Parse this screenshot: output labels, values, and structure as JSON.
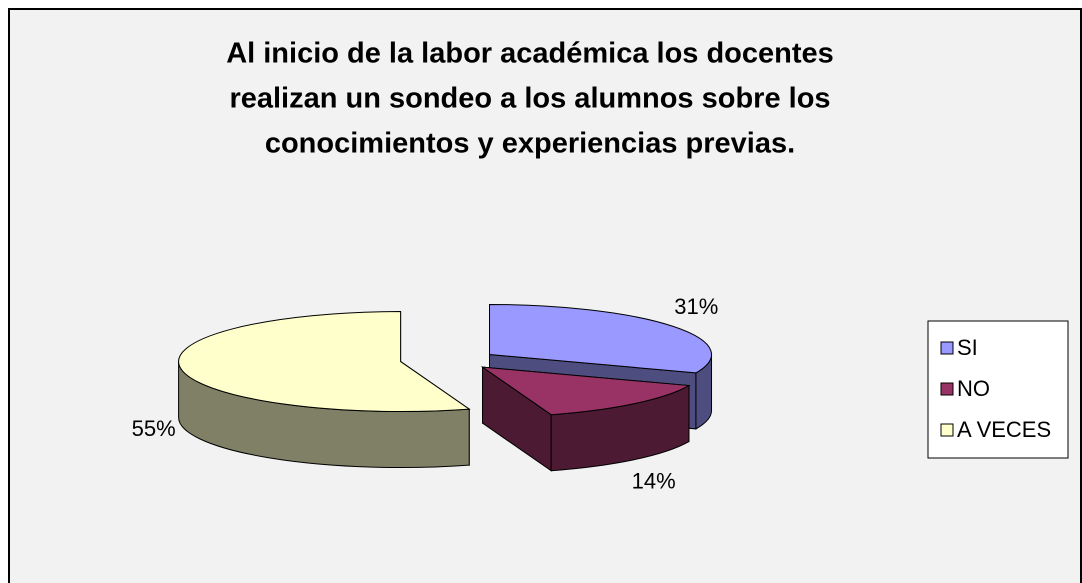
{
  "chart_data": {
    "type": "pie3d",
    "title": [
      "Al inicio de la labor académica los docentes",
      "realizan un sondeo  a los alumnos  sobre  los",
      "conocimientos y experiencias  previas."
    ],
    "categories": [
      "SI",
      "NO",
      "A VECES"
    ],
    "values": [
      31,
      14,
      55
    ],
    "value_labels": [
      "31%",
      "14%",
      "55%"
    ],
    "colors": [
      "#9999ff",
      "#993366",
      "#ffffcc"
    ],
    "legend": "right"
  }
}
